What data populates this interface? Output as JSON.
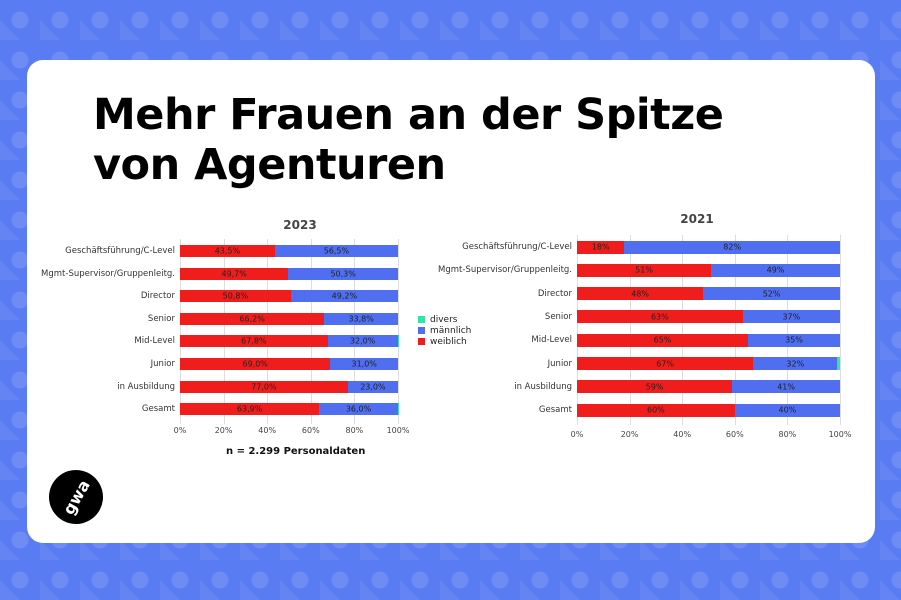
{
  "headline": {
    "line1": "Mehr Frauen an der Spitze",
    "line2": "von Agenturen"
  },
  "logo_text": "gwa",
  "note": "n = 2.299 Personaldaten",
  "legend": [
    {
      "name": "divers",
      "color": "#2ee6a6"
    },
    {
      "name": "männlich",
      "color": "#4f6ef0"
    },
    {
      "name": "weiblich",
      "color": "#f01d1d"
    }
  ],
  "chart_data": [
    {
      "type": "bar",
      "orientation": "horizontal",
      "stacked": true,
      "title": "2023",
      "categories": [
        "Geschäftsführung/C-Level",
        "Mgmt-Supervisor/Gruppenleitg.",
        "Director",
        "Senior",
        "Mid-Level",
        "Junior",
        "in Ausbildung",
        "Gesamt"
      ],
      "series": [
        {
          "name": "weiblich",
          "color": "#f01d1d",
          "values": [
            43.5,
            49.7,
            50.8,
            66.2,
            67.8,
            69.0,
            77.0,
            63.9
          ],
          "labels": [
            "43,5%",
            "49,7%",
            "50,8%",
            "66,2%",
            "67,8%",
            "69,0%",
            "77,0%",
            "63,9%"
          ]
        },
        {
          "name": "männlich",
          "color": "#4f6ef0",
          "values": [
            56.5,
            50.3,
            49.2,
            33.8,
            32.0,
            31.0,
            23.0,
            36.0
          ],
          "labels": [
            "56,5%",
            "50,3%",
            "49,2%",
            "33,8%",
            "32,0%",
            "31,0%",
            "23,0%",
            "36,0%"
          ]
        },
        {
          "name": "divers",
          "color": "#2ee6a6",
          "values": [
            0,
            0,
            0,
            0,
            0.2,
            0,
            0,
            0.1
          ],
          "labels": [
            "",
            "",
            "",
            "",
            "",
            "",
            "",
            ""
          ]
        }
      ],
      "xticks": [
        "0%",
        "20%",
        "40%",
        "60%",
        "80%",
        "100%"
      ],
      "xlim": [
        0,
        100
      ],
      "grid": true,
      "legend": "right"
    },
    {
      "type": "bar",
      "orientation": "horizontal",
      "stacked": true,
      "title": "2021",
      "categories": [
        "Geschäftsführung/C-Level",
        "Mgmt-Supervisor/Gruppenleitg.",
        "Director",
        "Senior",
        "Mid-Level",
        "Junior",
        "in Ausbildung",
        "Gesamt"
      ],
      "series": [
        {
          "name": "weiblich",
          "color": "#f01d1d",
          "values": [
            18,
            51,
            48,
            63,
            65,
            67,
            59,
            60
          ],
          "labels": [
            "18%",
            "51%",
            "48%",
            "63%",
            "65%",
            "67%",
            "59%",
            "60%"
          ]
        },
        {
          "name": "männlich",
          "color": "#4f6ef0",
          "values": [
            82,
            49,
            52,
            37,
            35,
            32,
            41,
            40
          ],
          "labels": [
            "82%",
            "49%",
            "52%",
            "37%",
            "35%",
            "32%",
            "41%",
            "40%"
          ]
        },
        {
          "name": "divers",
          "color": "#2ee6a6",
          "values": [
            0,
            0,
            0,
            0,
            0,
            1,
            0,
            0
          ],
          "labels": [
            "",
            "",
            "",
            "",
            "",
            "",
            "",
            ""
          ]
        }
      ],
      "xticks": [
        "0%",
        "20%",
        "40%",
        "60%",
        "80%",
        "100%"
      ],
      "xlim": [
        0,
        100
      ],
      "grid": true
    }
  ]
}
